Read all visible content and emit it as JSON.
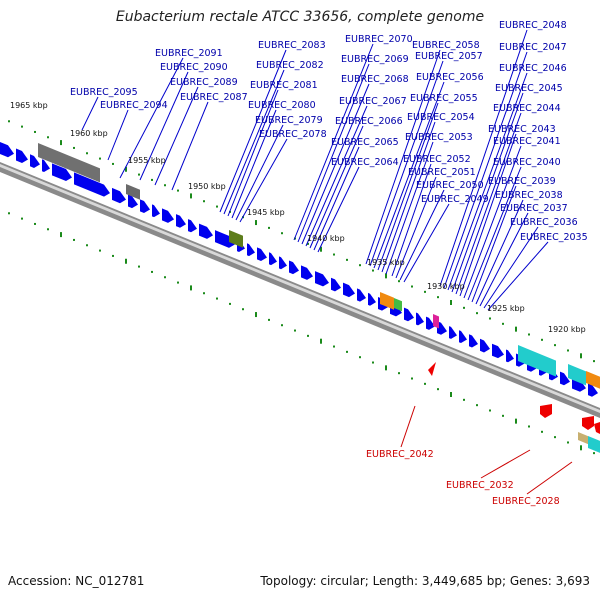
{
  "title": "Eubacterium rectale ATCC 33656, complete genome",
  "footer": {
    "accession": "Accession: NC_012781",
    "summary": "Topology: circular; Length: 3,449,685 bp; Genes: 3,693"
  },
  "colors": {
    "forward_gene": "#0000ee",
    "reverse_gene": "#ee0000",
    "label_forward": "#0000aa",
    "label_reverse": "#cc0000",
    "tick": "#1a8a1a",
    "backbone": "#808080"
  },
  "kbp_ticks": [
    "1965 kbp",
    "1960 kbp",
    "1955 kbp",
    "1950 kbp",
    "1945 kbp",
    "1940 kbp",
    "1935 kbp",
    "1930 kbp",
    "1925 kbp",
    "1920 kbp"
  ],
  "forward_labels": [
    "EUBREC_2095",
    "EUBREC_2094",
    "EUBREC_2091",
    "EUBREC_2090",
    "EUBREC_2089",
    "EUBREC_2087",
    "EUBREC_2083",
    "EUBREC_2082",
    "EUBREC_2081",
    "EUBREC_2080",
    "EUBREC_2079",
    "EUBREC_2078",
    "EUBREC_2070",
    "EUBREC_2069",
    "EUBREC_2068",
    "EUBREC_2067",
    "EUBREC_2066",
    "EUBREC_2065",
    "EUBREC_2064",
    "EUBREC_2058",
    "EUBREC_2057",
    "EUBREC_2056",
    "EUBREC_2055",
    "EUBREC_2054",
    "EUBREC_2053",
    "EUBREC_2052",
    "EUBREC_2051",
    "EUBREC_2050",
    "EUBREC_2049",
    "EUBREC_2048",
    "EUBREC_2047",
    "EUBREC_2046",
    "EUBREC_2045",
    "EUBREC_2044",
    "EUBREC_2043",
    "EUBREC_2041",
    "EUBREC_2040",
    "EUBREC_2039",
    "EUBREC_2038",
    "EUBREC_2037",
    "EUBREC_2036",
    "EUBREC_2035"
  ],
  "reverse_labels": [
    "EUBREC_2042",
    "EUBREC_2032",
    "EUBREC_2028"
  ]
}
